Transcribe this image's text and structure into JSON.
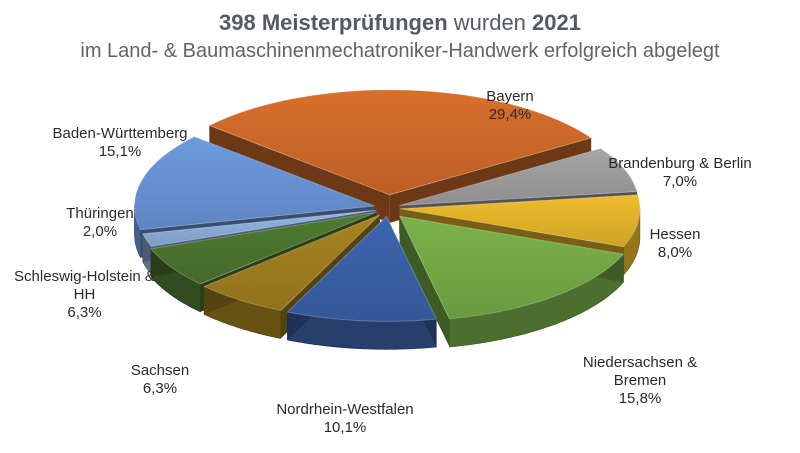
{
  "header": {
    "title_count": "398",
    "title_bold": "Meisterprüfungen",
    "title_mid": "wurden",
    "title_year": "2021",
    "subtitle": "im Land- & Baumaschinenmechatroniker-Handwerk erfolgreich abgelegt"
  },
  "chart_data": {
    "type": "pie",
    "title": "398 Meisterprüfungen wurden 2021",
    "subtitle": "im Land- & Baumaschinenmechatroniker-Handwerk erfolgreich abgelegt",
    "slices": [
      {
        "label": "Bayern",
        "value": 29.4,
        "display": "29,4%",
        "color": "#d96f2c"
      },
      {
        "label": "Brandenburg & Berlin",
        "value": 7.0,
        "display": "7,0%",
        "color": "#a5a5a5"
      },
      {
        "label": "Hessen",
        "value": 8.0,
        "display": "8,0%",
        "color": "#efbd2c"
      },
      {
        "label": "Niedersachsen & Bremen",
        "value": 15.8,
        "display": "15,8%",
        "color": "#7bb34a"
      },
      {
        "label": "Nordrhein-Westfalen",
        "value": 10.1,
        "display": "10,1%",
        "color": "#3d65b0"
      },
      {
        "label": "Sachsen",
        "value": 6.3,
        "display": "6,3%",
        "color": "#a8841f"
      },
      {
        "label": "Schleswig-Holstein & HH",
        "value": 6.3,
        "display": "6,3%",
        "color": "#4f7a30"
      },
      {
        "label": "Thüringen",
        "value": 2.0,
        "display": "2,0%",
        "color": "#93b6e4"
      },
      {
        "label": "Baden-Württemberg",
        "value": 15.1,
        "display": "15,1%",
        "color": "#6d9be0"
      }
    ]
  },
  "labels": {
    "bayern": {
      "name": "Bayern",
      "pct": "29,4%"
    },
    "brandenburg": {
      "name": "Brandenburg & Berlin",
      "pct": "7,0%"
    },
    "hessen": {
      "name": "Hessen",
      "pct": "8,0%"
    },
    "niedersachsen": {
      "line1": "Niedersachsen &",
      "line2": "Bremen",
      "pct": "15,8%"
    },
    "nrw": {
      "name": "Nordrhein-Westfalen",
      "pct": "10,1%"
    },
    "sachsen": {
      "name": "Sachsen",
      "pct": "6,3%"
    },
    "schleswig": {
      "line1": "Schleswig-Holstein &",
      "line2": "HH",
      "pct": "6,3%"
    },
    "thueringen": {
      "name": "Thüringen",
      "pct": "2,0%"
    },
    "bawue": {
      "name": "Baden-Württemberg",
      "pct": "15,1%"
    }
  }
}
